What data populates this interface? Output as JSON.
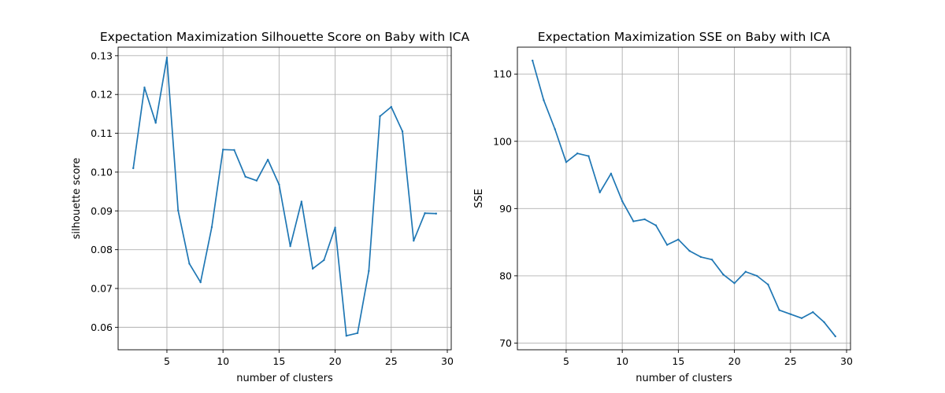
{
  "chart_data": [
    {
      "type": "line",
      "title": "Expectation Maximization Silhouette Score on Baby with ICA",
      "xlabel": "number of clusters",
      "ylabel": "silhouette score",
      "xlim": [
        0.65,
        30.35
      ],
      "ylim": [
        0.0542,
        0.1322
      ],
      "xticks": [
        5,
        10,
        15,
        20,
        25,
        30
      ],
      "xtick_labels": [
        "5",
        "10",
        "15",
        "20",
        "25",
        "30"
      ],
      "yticks": [
        0.06,
        0.07,
        0.08,
        0.09,
        0.1,
        0.11,
        0.12,
        0.13
      ],
      "ytick_labels": [
        "0.06",
        "0.07",
        "0.08",
        "0.09",
        "0.10",
        "0.11",
        "0.12",
        "0.13"
      ],
      "grid": true,
      "color": "#1f77b4",
      "x": [
        2,
        3,
        4,
        5,
        6,
        7,
        8,
        9,
        10,
        11,
        12,
        13,
        14,
        15,
        16,
        17,
        18,
        19,
        20,
        21,
        22,
        23,
        24,
        25,
        26,
        27,
        28,
        29
      ],
      "y": [
        0.101,
        0.1218,
        0.1127,
        0.1295,
        0.0901,
        0.0764,
        0.0716,
        0.0858,
        0.1058,
        0.1057,
        0.0988,
        0.0978,
        0.1032,
        0.0968,
        0.0809,
        0.0924,
        0.0751,
        0.0773,
        0.0857,
        0.0578,
        0.0585,
        0.0745,
        0.1144,
        0.1168,
        0.1105,
        0.0823,
        0.0894,
        0.0893
      ]
    },
    {
      "type": "line",
      "title": "Expectation Maximization SSE on Baby with ICA",
      "xlabel": "number of clusters",
      "ylabel": "SSE",
      "xlim": [
        0.65,
        30.35
      ],
      "ylim": [
        69.0,
        114.0
      ],
      "xticks": [
        5,
        10,
        15,
        20,
        25,
        30
      ],
      "xtick_labels": [
        "5",
        "10",
        "15",
        "20",
        "25",
        "30"
      ],
      "yticks": [
        70,
        80,
        90,
        100,
        110
      ],
      "ytick_labels": [
        "70",
        "80",
        "90",
        "100",
        "110"
      ],
      "grid": true,
      "color": "#1f77b4",
      "x": [
        2,
        3,
        4,
        5,
        6,
        7,
        8,
        9,
        10,
        11,
        12,
        13,
        14,
        15,
        16,
        17,
        18,
        19,
        20,
        21,
        22,
        23,
        24,
        25,
        26,
        27,
        28,
        29
      ],
      "y": [
        112.0,
        106.1,
        101.8,
        96.9,
        98.2,
        97.8,
        92.4,
        95.2,
        91.1,
        88.1,
        88.4,
        87.5,
        84.6,
        85.4,
        83.7,
        82.8,
        82.4,
        80.2,
        78.9,
        80.6,
        80.0,
        78.7,
        74.9,
        74.3,
        73.7,
        74.6,
        73.1,
        71.0
      ]
    }
  ]
}
